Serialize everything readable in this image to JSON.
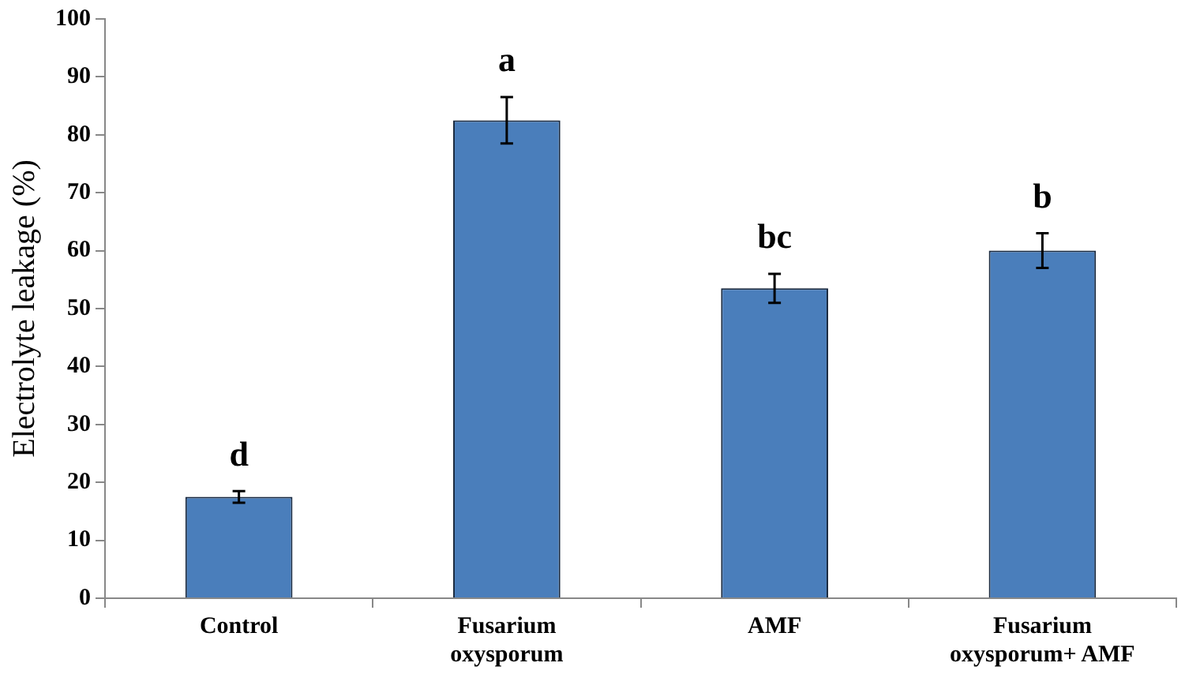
{
  "chart_data": {
    "type": "bar",
    "ylabel": "Electrolyte leakage (%)",
    "categories": [
      "Control",
      "Fusarium oxysporum",
      "AMF",
      "Fusarium oxysporum+ AMF"
    ],
    "values": [
      17.5,
      82.5,
      53.5,
      60
    ],
    "errors": [
      1,
      4,
      2.5,
      3
    ],
    "color": "#4a7ebb",
    "ylim": [
      0,
      100
    ],
    "yticks": [
      0,
      10,
      20,
      30,
      40,
      50,
      60,
      70,
      80,
      90,
      100
    ],
    "grid": false,
    "annotations": [
      "d",
      "a",
      "bc",
      "b"
    ]
  }
}
